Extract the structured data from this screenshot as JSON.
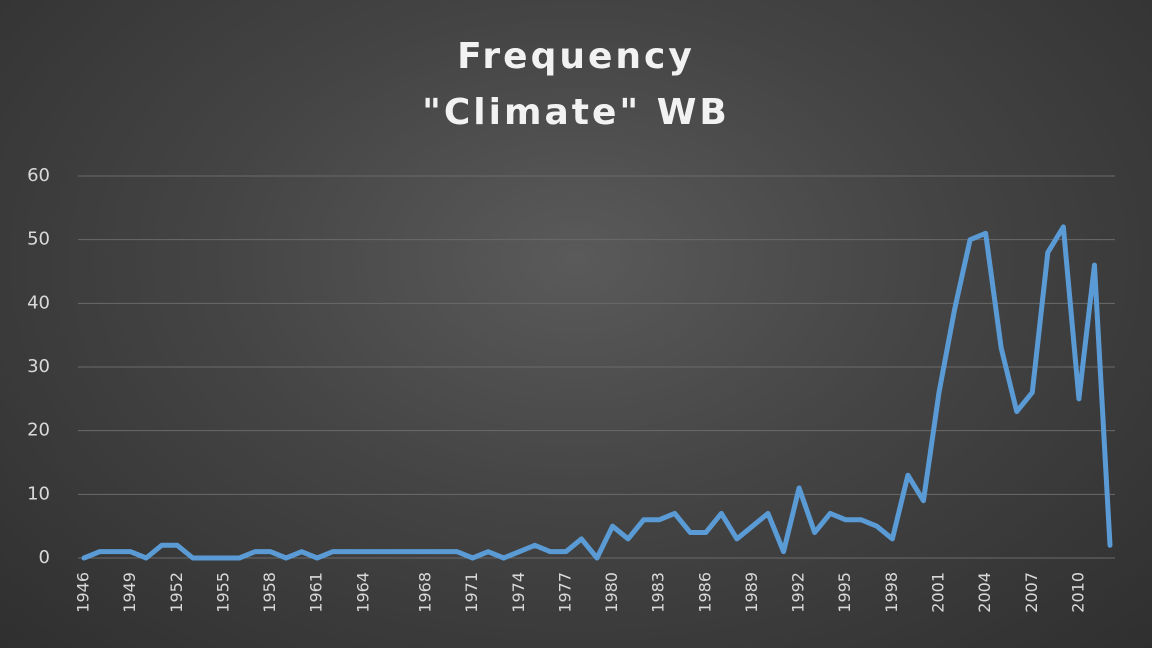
{
  "chart_data": {
    "type": "line",
    "title_lines": [
      "Frequency",
      "\"Climate\" WB"
    ],
    "xlabel": "",
    "ylabel": "",
    "ylim": [
      0,
      60
    ],
    "yticks": [
      0,
      10,
      20,
      30,
      40,
      50,
      60
    ],
    "grid": true,
    "legend": "none",
    "colors": {
      "series": "#5b9bd5",
      "grid": "#6a6a6a",
      "text": "#d9d9d9"
    },
    "x_tick_labels": [
      "1946",
      "1949",
      "1952",
      "1955",
      "1958",
      "1961",
      "1964",
      "1968",
      "1971",
      "1974",
      "1977",
      "1980",
      "1983",
      "1986",
      "1989",
      "1992",
      "1995",
      "1998",
      "2001",
      "2004",
      "2007",
      "2010"
    ],
    "x": [
      1946,
      1947,
      1948,
      1949,
      1950,
      1951,
      1952,
      1953,
      1954,
      1955,
      1956,
      1957,
      1958,
      1959,
      1960,
      1961,
      1962,
      1963,
      1964,
      1965,
      1966,
      1967,
      1968,
      1969,
      1970,
      1971,
      1972,
      1973,
      1974,
      1975,
      1976,
      1977,
      1978,
      1979,
      1980,
      1981,
      1982,
      1983,
      1984,
      1985,
      1986,
      1987,
      1988,
      1989,
      1990,
      1991,
      1992,
      1993,
      1994,
      1995,
      1996,
      1997,
      1998,
      1999,
      2000,
      2001,
      2002,
      2003,
      2004,
      2005,
      2006,
      2007,
      2008,
      2009,
      2010,
      2011,
      2012
    ],
    "series": [
      {
        "values": [
          0,
          1,
          1,
          1,
          0,
          2,
          2,
          0,
          0,
          0,
          0,
          1,
          1,
          0,
          1,
          0,
          1,
          1,
          1,
          1,
          1,
          1,
          1,
          1,
          1,
          0,
          1,
          0,
          1,
          2,
          1,
          1,
          3,
          0,
          5,
          3,
          6,
          6,
          7,
          4,
          4,
          7,
          3,
          5,
          7,
          1,
          11,
          4,
          7,
          6,
          6,
          5,
          3,
          13,
          9,
          26,
          39,
          50,
          51,
          33,
          23,
          26,
          48,
          52,
          25,
          46,
          2
        ]
      }
    ]
  }
}
